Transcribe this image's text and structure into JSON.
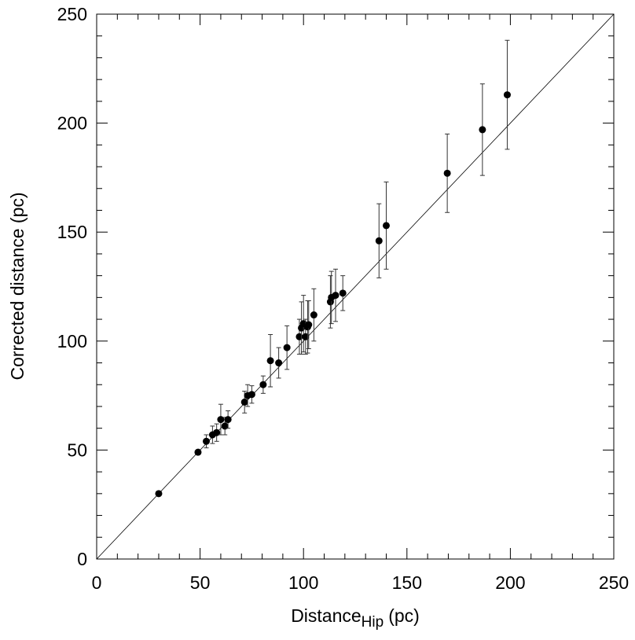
{
  "chart_data": {
    "type": "scatter",
    "xlabel": "Distance",
    "xlabel_sub": "Hip",
    "xlabel_unit": "(pc)",
    "ylabel": "Corrected distance (pc)",
    "xlim": [
      0,
      250
    ],
    "ylim": [
      0,
      250
    ],
    "xticks": [
      0,
      50,
      100,
      150,
      200,
      250
    ],
    "yticks": [
      0,
      50,
      100,
      150,
      200,
      250
    ],
    "minorticks": [
      10,
      20,
      30,
      40,
      60,
      70,
      80,
      90,
      110,
      120,
      130,
      140,
      160,
      170,
      180,
      190,
      210,
      220,
      230,
      240
    ],
    "diagonal": true,
    "color": "#000000",
    "x": [
      30,
      49,
      53,
      56,
      58,
      60,
      62,
      63.5,
      71.5,
      73,
      75,
      80.5,
      84,
      88,
      92,
      98,
      99,
      100,
      101,
      102,
      102.5,
      105,
      113,
      113.5,
      115.5,
      119,
      136.5,
      140,
      169.5,
      186.5,
      198.5
    ],
    "values": [
      30,
      49,
      54,
      57,
      58,
      64,
      61,
      64,
      72,
      75,
      75.5,
      80,
      91,
      90,
      97,
      102,
      106,
      108,
      102,
      106.5,
      107.5,
      112,
      118,
      120,
      121,
      122,
      146,
      153,
      177,
      197,
      213
    ],
    "errors": [
      1,
      1,
      3,
      4,
      4,
      7,
      4,
      4,
      5,
      5,
      4,
      4,
      12,
      7,
      10,
      8,
      12,
      13,
      8,
      12,
      11,
      12,
      12,
      12,
      12,
      8,
      17,
      20,
      18,
      21,
      25
    ]
  }
}
